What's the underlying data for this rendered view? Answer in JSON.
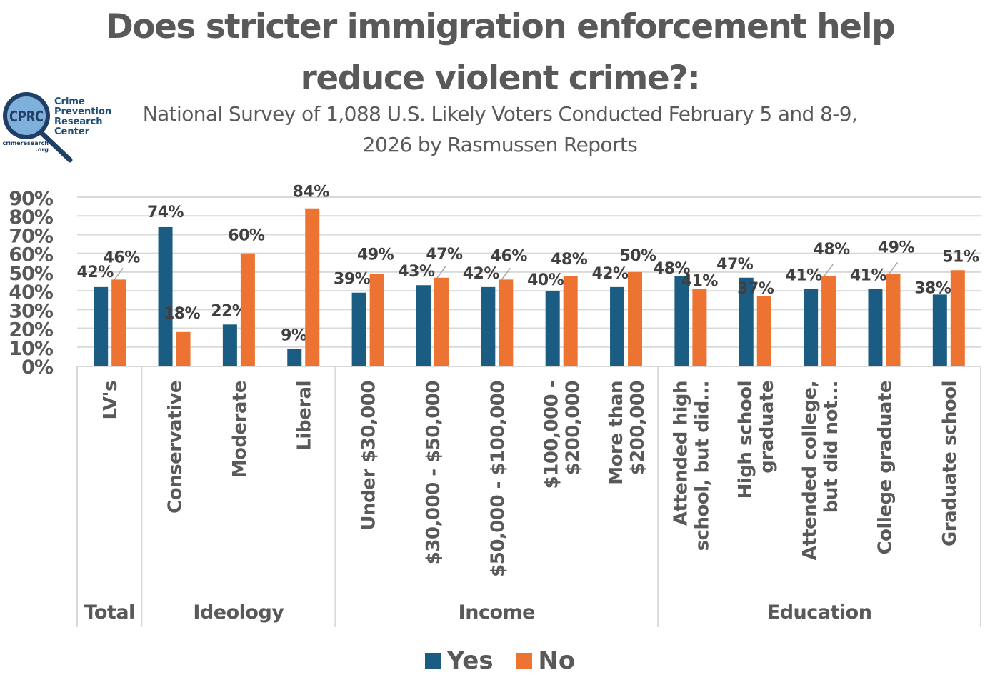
{
  "logo": {
    "badge": "CPRC",
    "name_lines": [
      "Crime",
      "Prevention",
      "Research",
      "Center"
    ],
    "url_lines": [
      "crimeresearch",
      ".org"
    ]
  },
  "colors": {
    "yes": "#1b5d82",
    "no": "#ec7331",
    "text": "#595959",
    "grid": "#d9d9d9"
  },
  "chart_data": {
    "type": "bar",
    "title": "Does stricter immigration enforcement help reduce violent crime?:",
    "title_lines": [
      "Does stricter immigration enforcement help",
      "reduce violent crime?:"
    ],
    "subtitle": "National Survey of 1,088 U.S. Likely Voters Conducted February 5 and 8-9, 2026 by Rasmussen Reports",
    "subtitle_lines": [
      "National Survey of 1,088 U.S. Likely Voters Conducted February 5 and 8-9,",
      "2026 by Rasmussen Reports"
    ],
    "xlabel": "",
    "ylabel": "",
    "ylim": [
      0,
      90
    ],
    "y_ticks": [
      "0%",
      "10%",
      "20%",
      "30%",
      "40%",
      "50%",
      "60%",
      "70%",
      "80%",
      "90%"
    ],
    "y_tick_values": [
      0,
      10,
      20,
      30,
      40,
      50,
      60,
      70,
      80,
      90
    ],
    "grid": true,
    "legend_position": "bottom",
    "categories": [
      [
        "LV's"
      ],
      [
        "Conservative"
      ],
      [
        "Moderate"
      ],
      [
        "Liberal"
      ],
      [
        "Under $30,000"
      ],
      [
        "$30,000 - $50,000"
      ],
      [
        "$50,000 - $100,000"
      ],
      [
        "$100,000 -",
        "$200,000"
      ],
      [
        "More than",
        "$200,000"
      ],
      [
        "Attended high",
        "school, but did..."
      ],
      [
        "High school",
        "graduate"
      ],
      [
        "Attended college,",
        "but did not..."
      ],
      [
        "College graduate"
      ],
      [
        "Graduate school"
      ]
    ],
    "groups": [
      {
        "label": "Total",
        "count": 1
      },
      {
        "label": "Ideology",
        "count": 3
      },
      {
        "label": "Income",
        "count": 5
      },
      {
        "label": "Education",
        "count": 5
      }
    ],
    "series": [
      {
        "name": "Yes",
        "values": [
          42,
          74,
          22,
          9,
          39,
          43,
          42,
          40,
          42,
          48,
          47,
          41,
          41,
          38
        ]
      },
      {
        "name": "No",
        "values": [
          46,
          18,
          60,
          84,
          49,
          47,
          46,
          48,
          50,
          41,
          37,
          48,
          49,
          51
        ]
      }
    ],
    "data_labels": {
      "Yes": [
        "42%",
        "74%",
        "22%",
        "9%",
        "39%",
        "43%",
        "42%",
        "40%",
        "42%",
        "48%",
        "47%",
        "41%",
        "41%",
        "38%"
      ],
      "No": [
        "46%",
        "18%",
        "60%",
        "84%",
        "49%",
        "47%",
        "46%",
        "48%",
        "50%",
        "41%",
        "37%",
        "48%",
        "49%",
        "51%"
      ]
    }
  }
}
